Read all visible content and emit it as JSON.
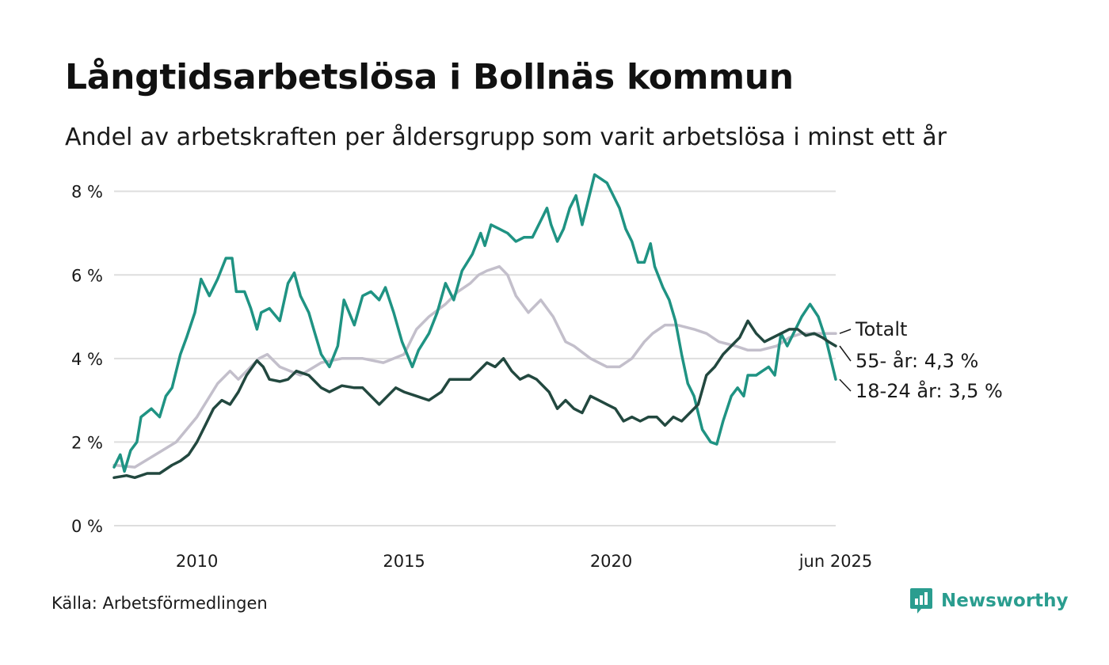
{
  "title": "Långtidsarbetslösa i Bollnäs kommun",
  "subtitle": "Andel av arbetskraften per åldersgrupp som varit arbetslösa i minst ett år",
  "source": "Källa: Arbetsförmedlingen",
  "brand": "Newsworthy",
  "colors": {
    "accent": "#2a9d8f",
    "grid": "#dedede",
    "youth": "#1f9383",
    "senior": "#22483f",
    "total": "#c3bfcb"
  },
  "chart_data": {
    "type": "line",
    "x_unit": "decimal year",
    "xlim": [
      2008.0,
      2025.42
    ],
    "ylim": [
      0,
      8.6
    ],
    "y_ticks": [
      0,
      2,
      4,
      6,
      8
    ],
    "y_tick_labels": [
      "0 %",
      "2 %",
      "4 %",
      "6 %",
      "8 %"
    ],
    "x_ticks": [
      2010,
      2015,
      2020,
      2025.42
    ],
    "x_tick_labels": [
      "2010",
      "2015",
      "2020",
      "jun 2025"
    ],
    "grid": true,
    "series": [
      {
        "key": "total",
        "name": "Totalt",
        "label": "Totalt",
        "points": [
          [
            2008.0,
            1.45
          ],
          [
            2008.5,
            1.4
          ],
          [
            2009.0,
            1.7
          ],
          [
            2009.5,
            2.0
          ],
          [
            2010.0,
            2.6
          ],
          [
            2010.5,
            3.4
          ],
          [
            2010.8,
            3.7
          ],
          [
            2011.0,
            3.5
          ],
          [
            2011.3,
            3.8
          ],
          [
            2011.5,
            4.0
          ],
          [
            2011.7,
            4.1
          ],
          [
            2012.0,
            3.8
          ],
          [
            2012.5,
            3.6
          ],
          [
            2013.0,
            3.9
          ],
          [
            2013.5,
            4.0
          ],
          [
            2014.0,
            4.0
          ],
          [
            2014.5,
            3.9
          ],
          [
            2015.0,
            4.1
          ],
          [
            2015.3,
            4.7
          ],
          [
            2015.6,
            5.0
          ],
          [
            2016.0,
            5.3
          ],
          [
            2016.3,
            5.6
          ],
          [
            2016.6,
            5.8
          ],
          [
            2016.8,
            6.0
          ],
          [
            2017.0,
            6.1
          ],
          [
            2017.3,
            6.2
          ],
          [
            2017.5,
            6.0
          ],
          [
            2017.7,
            5.5
          ],
          [
            2018.0,
            5.1
          ],
          [
            2018.3,
            5.4
          ],
          [
            2018.6,
            5.0
          ],
          [
            2018.9,
            4.4
          ],
          [
            2019.1,
            4.3
          ],
          [
            2019.5,
            4.0
          ],
          [
            2019.9,
            3.8
          ],
          [
            2020.2,
            3.8
          ],
          [
            2020.5,
            4.0
          ],
          [
            2020.8,
            4.4
          ],
          [
            2021.0,
            4.6
          ],
          [
            2021.3,
            4.8
          ],
          [
            2021.6,
            4.8
          ],
          [
            2022.0,
            4.7
          ],
          [
            2022.3,
            4.6
          ],
          [
            2022.6,
            4.4
          ],
          [
            2023.0,
            4.3
          ],
          [
            2023.3,
            4.2
          ],
          [
            2023.6,
            4.2
          ],
          [
            2024.0,
            4.3
          ],
          [
            2024.3,
            4.5
          ],
          [
            2024.6,
            4.6
          ],
          [
            2025.0,
            4.6
          ],
          [
            2025.42,
            4.6
          ]
        ]
      },
      {
        "key": "youth",
        "name": "18-24 år",
        "label": "18-24 år: 3,5 %",
        "points": [
          [
            2008.0,
            1.4
          ],
          [
            2008.15,
            1.7
          ],
          [
            2008.25,
            1.3
          ],
          [
            2008.4,
            1.8
          ],
          [
            2008.55,
            2.0
          ],
          [
            2008.65,
            2.6
          ],
          [
            2008.9,
            2.8
          ],
          [
            2009.1,
            2.6
          ],
          [
            2009.25,
            3.1
          ],
          [
            2009.4,
            3.3
          ],
          [
            2009.6,
            4.1
          ],
          [
            2009.75,
            4.5
          ],
          [
            2009.95,
            5.1
          ],
          [
            2010.1,
            5.9
          ],
          [
            2010.3,
            5.5
          ],
          [
            2010.5,
            5.9
          ],
          [
            2010.7,
            6.4
          ],
          [
            2010.85,
            6.4
          ],
          [
            2010.95,
            5.6
          ],
          [
            2011.15,
            5.6
          ],
          [
            2011.3,
            5.2
          ],
          [
            2011.45,
            4.7
          ],
          [
            2011.55,
            5.1
          ],
          [
            2011.75,
            5.2
          ],
          [
            2012.0,
            4.9
          ],
          [
            2012.2,
            5.8
          ],
          [
            2012.35,
            6.05
          ],
          [
            2012.5,
            5.5
          ],
          [
            2012.7,
            5.1
          ],
          [
            2012.85,
            4.6
          ],
          [
            2013.0,
            4.1
          ],
          [
            2013.2,
            3.8
          ],
          [
            2013.4,
            4.3
          ],
          [
            2013.55,
            5.4
          ],
          [
            2013.8,
            4.8
          ],
          [
            2014.0,
            5.5
          ],
          [
            2014.2,
            5.6
          ],
          [
            2014.4,
            5.4
          ],
          [
            2014.55,
            5.7
          ],
          [
            2014.75,
            5.1
          ],
          [
            2014.95,
            4.4
          ],
          [
            2015.2,
            3.8
          ],
          [
            2015.35,
            4.2
          ],
          [
            2015.6,
            4.6
          ],
          [
            2015.8,
            5.1
          ],
          [
            2016.0,
            5.8
          ],
          [
            2016.2,
            5.4
          ],
          [
            2016.4,
            6.1
          ],
          [
            2016.65,
            6.5
          ],
          [
            2016.85,
            7.0
          ],
          [
            2016.95,
            6.7
          ],
          [
            2017.1,
            7.2
          ],
          [
            2017.3,
            7.1
          ],
          [
            2017.5,
            7.0
          ],
          [
            2017.7,
            6.8
          ],
          [
            2017.9,
            6.9
          ],
          [
            2018.1,
            6.9
          ],
          [
            2018.3,
            7.3
          ],
          [
            2018.45,
            7.6
          ],
          [
            2018.55,
            7.2
          ],
          [
            2018.7,
            6.8
          ],
          [
            2018.85,
            7.1
          ],
          [
            2019.0,
            7.6
          ],
          [
            2019.15,
            7.9
          ],
          [
            2019.3,
            7.2
          ],
          [
            2019.45,
            7.8
          ],
          [
            2019.6,
            8.4
          ],
          [
            2019.75,
            8.3
          ],
          [
            2019.9,
            8.2
          ],
          [
            2020.05,
            7.9
          ],
          [
            2020.2,
            7.6
          ],
          [
            2020.35,
            7.1
          ],
          [
            2020.5,
            6.8
          ],
          [
            2020.65,
            6.3
          ],
          [
            2020.8,
            6.3
          ],
          [
            2020.95,
            6.75
          ],
          [
            2021.05,
            6.2
          ],
          [
            2021.25,
            5.7
          ],
          [
            2021.4,
            5.4
          ],
          [
            2021.55,
            4.9
          ],
          [
            2021.7,
            4.1
          ],
          [
            2021.85,
            3.4
          ],
          [
            2022.0,
            3.1
          ],
          [
            2022.2,
            2.3
          ],
          [
            2022.4,
            2.0
          ],
          [
            2022.55,
            1.95
          ],
          [
            2022.7,
            2.5
          ],
          [
            2022.9,
            3.1
          ],
          [
            2023.05,
            3.3
          ],
          [
            2023.2,
            3.1
          ],
          [
            2023.3,
            3.6
          ],
          [
            2023.5,
            3.6
          ],
          [
            2023.65,
            3.7
          ],
          [
            2023.8,
            3.8
          ],
          [
            2023.95,
            3.6
          ],
          [
            2024.1,
            4.6
          ],
          [
            2024.25,
            4.3
          ],
          [
            2024.4,
            4.6
          ],
          [
            2024.6,
            5.0
          ],
          [
            2024.8,
            5.3
          ],
          [
            2025.0,
            5.0
          ],
          [
            2025.2,
            4.4
          ],
          [
            2025.42,
            3.5
          ]
        ]
      },
      {
        "key": "senior",
        "name": "55- år",
        "label": "55- år: 4,3 %",
        "points": [
          [
            2008.0,
            1.15
          ],
          [
            2008.3,
            1.2
          ],
          [
            2008.5,
            1.15
          ],
          [
            2008.8,
            1.25
          ],
          [
            2009.1,
            1.25
          ],
          [
            2009.4,
            1.45
          ],
          [
            2009.6,
            1.55
          ],
          [
            2009.8,
            1.7
          ],
          [
            2010.0,
            2.0
          ],
          [
            2010.2,
            2.4
          ],
          [
            2010.4,
            2.8
          ],
          [
            2010.6,
            3.0
          ],
          [
            2010.8,
            2.9
          ],
          [
            2011.0,
            3.2
          ],
          [
            2011.2,
            3.6
          ],
          [
            2011.45,
            3.95
          ],
          [
            2011.6,
            3.8
          ],
          [
            2011.75,
            3.5
          ],
          [
            2012.0,
            3.45
          ],
          [
            2012.2,
            3.5
          ],
          [
            2012.4,
            3.7
          ],
          [
            2012.7,
            3.6
          ],
          [
            2013.0,
            3.3
          ],
          [
            2013.2,
            3.2
          ],
          [
            2013.5,
            3.35
          ],
          [
            2013.8,
            3.3
          ],
          [
            2014.0,
            3.3
          ],
          [
            2014.2,
            3.1
          ],
          [
            2014.4,
            2.9
          ],
          [
            2014.6,
            3.1
          ],
          [
            2014.8,
            3.3
          ],
          [
            2015.0,
            3.2
          ],
          [
            2015.3,
            3.1
          ],
          [
            2015.6,
            3.0
          ],
          [
            2015.9,
            3.2
          ],
          [
            2016.1,
            3.5
          ],
          [
            2016.3,
            3.5
          ],
          [
            2016.6,
            3.5
          ],
          [
            2016.8,
            3.7
          ],
          [
            2017.0,
            3.9
          ],
          [
            2017.2,
            3.8
          ],
          [
            2017.4,
            4.0
          ],
          [
            2017.6,
            3.7
          ],
          [
            2017.8,
            3.5
          ],
          [
            2018.0,
            3.6
          ],
          [
            2018.2,
            3.5
          ],
          [
            2018.5,
            3.2
          ],
          [
            2018.7,
            2.8
          ],
          [
            2018.9,
            3.0
          ],
          [
            2019.1,
            2.8
          ],
          [
            2019.3,
            2.7
          ],
          [
            2019.5,
            3.1
          ],
          [
            2019.7,
            3.0
          ],
          [
            2019.9,
            2.9
          ],
          [
            2020.1,
            2.8
          ],
          [
            2020.3,
            2.5
          ],
          [
            2020.5,
            2.6
          ],
          [
            2020.7,
            2.5
          ],
          [
            2020.9,
            2.6
          ],
          [
            2021.1,
            2.6
          ],
          [
            2021.3,
            2.4
          ],
          [
            2021.5,
            2.6
          ],
          [
            2021.7,
            2.5
          ],
          [
            2021.9,
            2.7
          ],
          [
            2022.1,
            2.9
          ],
          [
            2022.3,
            3.6
          ],
          [
            2022.5,
            3.8
          ],
          [
            2022.7,
            4.1
          ],
          [
            2022.9,
            4.3
          ],
          [
            2023.1,
            4.5
          ],
          [
            2023.3,
            4.9
          ],
          [
            2023.5,
            4.6
          ],
          [
            2023.7,
            4.4
          ],
          [
            2023.9,
            4.5
          ],
          [
            2024.1,
            4.6
          ],
          [
            2024.3,
            4.7
          ],
          [
            2024.5,
            4.7
          ],
          [
            2024.7,
            4.55
          ],
          [
            2024.9,
            4.6
          ],
          [
            2025.1,
            4.5
          ],
          [
            2025.25,
            4.4
          ],
          [
            2025.42,
            4.3
          ]
        ]
      }
    ]
  }
}
